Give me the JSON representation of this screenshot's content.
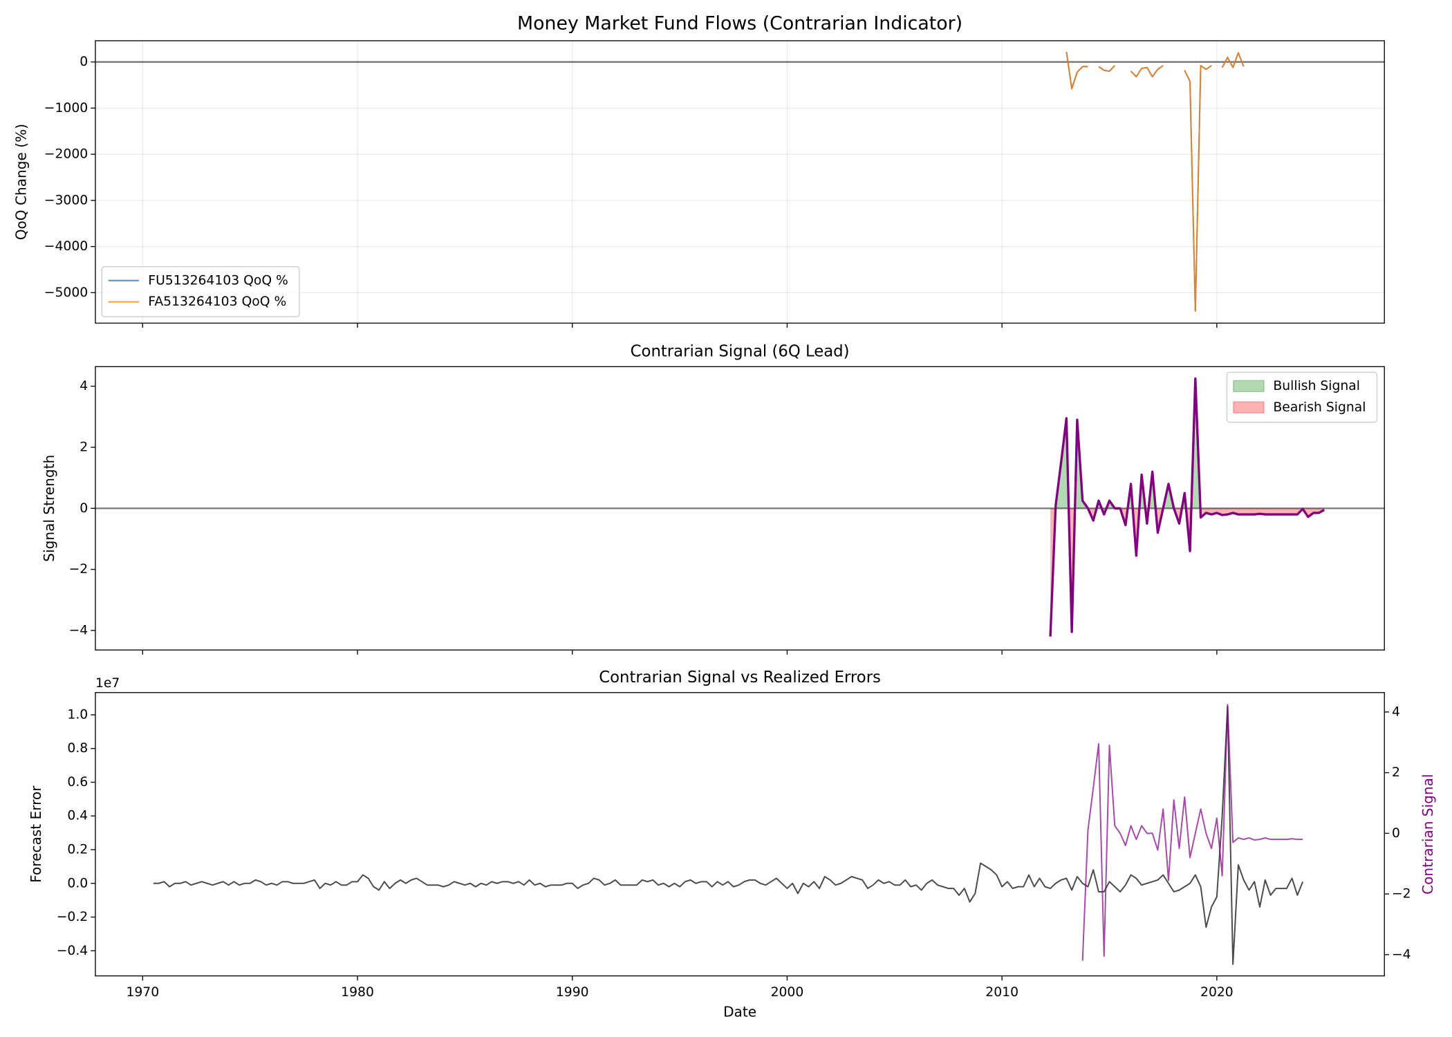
{
  "chart_data": [
    {
      "type": "line",
      "title": "Money Market Fund Flows (Contrarian Indicator)",
      "ylabel": "QoQ Change (%)",
      "xlim": [
        1967.8,
        2027.8
      ],
      "xticks": [
        1970,
        1980,
        1990,
        2000,
        2010,
        2020
      ],
      "xtick_labels": false,
      "ylim": [
        -5660,
        460
      ],
      "yticks": [
        {
          "value": -5000,
          "label": "−5000"
        },
        {
          "value": -4000,
          "label": "−4000"
        },
        {
          "value": -3000,
          "label": "−3000"
        },
        {
          "value": -2000,
          "label": "−2000"
        },
        {
          "value": -1000,
          "label": "−1000"
        },
        0
      ],
      "grid": true,
      "reference_line": 0,
      "legend": "lower left",
      "x": [
        2013.0,
        2013.25,
        2013.5,
        2013.75,
        2014.0,
        2014.25,
        2014.5,
        2014.75,
        2015.0,
        2015.25,
        2015.5,
        2015.75,
        2016.0,
        2016.25,
        2016.5,
        2016.75,
        2017.0,
        2017.25,
        2017.5,
        2017.75,
        2018.0,
        2018.25,
        2018.5,
        2018.75,
        2019.0,
        2019.25,
        2019.5,
        2019.75,
        2020.0,
        2020.25,
        2020.5,
        2020.75,
        2021.0,
        2021.25
      ],
      "series": [
        {
          "name": "FU513264103 QoQ %",
          "color": "#1f77b4",
          "alpha": 0.8,
          "linewidth": 1.5,
          "values": [
            220,
            -580,
            -220,
            -100,
            -100,
            null,
            -100,
            -180,
            -200,
            -80,
            null,
            null,
            -200,
            -320,
            -140,
            -120,
            -320,
            -160,
            -80,
            null,
            null,
            null,
            -180,
            -420,
            -5400,
            -80,
            -160,
            -80,
            null,
            -120,
            100,
            -120,
            200,
            -100
          ]
        },
        {
          "name": "FA513264103 QoQ %",
          "color": "#ff7f0e",
          "alpha": 0.8,
          "linewidth": 1.5,
          "values": [
            220,
            -580,
            -220,
            -100,
            -100,
            null,
            -100,
            -180,
            -200,
            -80,
            null,
            null,
            -200,
            -320,
            -140,
            -120,
            -320,
            -160,
            -80,
            null,
            null,
            null,
            -180,
            -420,
            -5400,
            -80,
            -160,
            -80,
            null,
            -120,
            100,
            -120,
            200,
            -100
          ]
        }
      ]
    },
    {
      "type": "line",
      "title": "Contrarian Signal (6Q Lead)",
      "ylabel": "Signal Strength",
      "xlim": [
        1967.8,
        2027.8
      ],
      "xticks": [
        1970,
        1980,
        1990,
        2000,
        2010,
        2020
      ],
      "xtick_labels": false,
      "ylim": [
        -4.64,
        4.64
      ],
      "yticks": [
        {
          "value": -4,
          "label": "−4"
        },
        {
          "value": -2,
          "label": "−2"
        },
        0,
        2,
        4
      ],
      "reference_line": 0,
      "legend": "upper right",
      "x": [
        2012.25,
        2012.5,
        2012.75,
        2013.0,
        2013.25,
        2013.5,
        2013.75,
        2014.0,
        2014.25,
        2014.5,
        2014.75,
        2015.0,
        2015.25,
        2015.5,
        2015.75,
        2016.0,
        2016.25,
        2016.5,
        2016.75,
        2017.0,
        2017.25,
        2017.5,
        2017.75,
        2018.0,
        2018.25,
        2018.5,
        2018.75,
        2019.0,
        2019.25,
        2019.5,
        2019.75,
        2020.0,
        2020.25,
        2020.5,
        2020.75,
        2021.0,
        2021.25,
        2021.5,
        2021.75,
        2022.0,
        2022.25,
        2022.5,
        2022.75,
        2023.0,
        2023.25,
        2023.5,
        2023.75,
        2024.0,
        2024.25,
        2024.5,
        2024.75,
        2025.0
      ],
      "series": [
        {
          "color": "#800080",
          "linewidth": 2.5,
          "values": [
            -4.2,
            0.1,
            1.5,
            2.95,
            -4.05,
            2.9,
            0.25,
            0,
            -0.4,
            0.25,
            -0.2,
            0.25,
            0,
            0,
            -0.55,
            0.8,
            -1.55,
            1.1,
            -0.5,
            1.2,
            -0.8,
            0,
            0.8,
            0,
            -0.5,
            0.5,
            -1.4,
            4.25,
            -0.3,
            -0.15,
            -0.2,
            -0.15,
            -0.22,
            -0.2,
            -0.15,
            -0.2,
            -0.2,
            -0.2,
            -0.2,
            -0.18,
            -0.2,
            -0.2,
            -0.2,
            -0.2,
            -0.2,
            -0.2,
            -0.2,
            -0.02,
            -0.28,
            -0.15,
            -0.15,
            -0.05
          ]
        }
      ],
      "fills": [
        {
          "name": "Bullish Signal",
          "color": "#008000",
          "alpha": 0.3,
          "where": "above"
        },
        {
          "name": "Bearish Signal",
          "color": "#ff0000",
          "alpha": 0.3,
          "where": "below"
        }
      ]
    },
    {
      "type": "line",
      "title": "Contrarian Signal vs Realized Errors",
      "xlabel": "Date",
      "ylabel": "Forecast Error",
      "y2label": "Contrarian Signal",
      "y_offset_label": "1e7",
      "xlim": [
        1967.8,
        2027.8
      ],
      "xticks": [
        1970,
        1980,
        1990,
        2000,
        2010,
        2020
      ],
      "xtick_labels": true,
      "ylim": [
        -5490000,
        11320000
      ],
      "yticks": [
        {
          "value": -4000000,
          "label": "−0.4"
        },
        {
          "value": -2000000,
          "label": "−0.2"
        },
        {
          "value": 0,
          "label": "0.0"
        },
        {
          "value": 2000000,
          "label": "0.2"
        },
        {
          "value": 4000000,
          "label": "0.4"
        },
        {
          "value": 6000000,
          "label": "0.6"
        },
        {
          "value": 8000000,
          "label": "0.8"
        },
        {
          "value": 10000000,
          "label": "1.0"
        }
      ],
      "y2lim": [
        -4.7,
        4.64
      ],
      "y2ticks": [
        {
          "value": -4,
          "label": "−4"
        },
        {
          "value": -2,
          "label": "−2"
        },
        0,
        2,
        4
      ],
      "series": [
        {
          "color": "#000000",
          "alpha": 0.7,
          "linewidth": 1.5,
          "x": [
            1970.5,
            1970.75,
            1971.0,
            1971.25,
            1971.5,
            1971.75,
            1972.0,
            1972.25,
            1972.5,
            1972.75,
            1973.0,
            1973.25,
            1973.5,
            1973.75,
            1974.0,
            1974.25,
            1974.5,
            1974.75,
            1975.0,
            1975.25,
            1975.5,
            1975.75,
            1976.0,
            1976.25,
            1976.5,
            1976.75,
            1977.0,
            1977.25,
            1977.5,
            1977.75,
            1978.0,
            1978.25,
            1978.5,
            1978.75,
            1979.0,
            1979.25,
            1979.5,
            1979.75,
            1980.0,
            1980.25,
            1980.5,
            1980.75,
            1981.0,
            1981.25,
            1981.5,
            1981.75,
            1982.0,
            1982.25,
            1982.5,
            1982.75,
            1983.0,
            1983.25,
            1983.5,
            1983.75,
            1984.0,
            1984.25,
            1984.5,
            1984.75,
            1985.0,
            1985.25,
            1985.5,
            1985.75,
            1986.0,
            1986.25,
            1986.5,
            1986.75,
            1987.0,
            1987.25,
            1987.5,
            1987.75,
            1988.0,
            1988.25,
            1988.5,
            1988.75,
            1989.0,
            1989.25,
            1989.5,
            1989.75,
            1990.0,
            1990.25,
            1990.5,
            1990.75,
            1991.0,
            1991.25,
            1991.5,
            1991.75,
            1992.0,
            1992.25,
            1992.5,
            1992.75,
            1993.0,
            1993.25,
            1993.5,
            1993.75,
            1994.0,
            1994.25,
            1994.5,
            1994.75,
            1995.0,
            1995.25,
            1995.5,
            1995.75,
            1996.0,
            1996.25,
            1996.5,
            1996.75,
            1997.0,
            1997.25,
            1997.5,
            1997.75,
            1998.0,
            1998.25,
            1998.5,
            1998.75,
            1999.0,
            1999.25,
            1999.5,
            1999.75,
            2000.0,
            2000.25,
            2000.5,
            2000.75,
            2001.0,
            2001.25,
            2001.5,
            2001.75,
            2002.0,
            2002.25,
            2002.5,
            2002.75,
            2003.0,
            2003.25,
            2003.5,
            2003.75,
            2004.0,
            2004.25,
            2004.5,
            2004.75,
            2005.0,
            2005.25,
            2005.5,
            2005.75,
            2006.0,
            2006.25,
            2006.5,
            2006.75,
            2007.0,
            2007.25,
            2007.5,
            2007.75,
            2008.0,
            2008.25,
            2008.5,
            2008.75,
            2009.0,
            2009.25,
            2009.5,
            2009.75,
            2010.0,
            2010.25,
            2010.5,
            2010.75,
            2011.0,
            2011.25,
            2011.5,
            2011.75,
            2012.0,
            2012.25,
            2012.5,
            2012.75,
            2013.0,
            2013.25,
            2013.5,
            2013.75,
            2014.0,
            2014.25,
            2014.5,
            2014.75,
            2015.0,
            2015.25,
            2015.5,
            2015.75,
            2016.0,
            2016.25,
            2016.5,
            2016.75,
            2017.0,
            2017.25,
            2017.5,
            2017.75,
            2018.0,
            2018.25,
            2018.5,
            2018.75,
            2019.0,
            2019.25,
            2019.5,
            2019.75,
            2020.0,
            2020.25,
            2020.5,
            2020.75,
            2021.0,
            2021.25,
            2021.5,
            2021.75,
            2022.0,
            2022.25,
            2022.5,
            2022.75,
            2023.0,
            2023.25,
            2023.5,
            2023.75,
            2024.0
          ],
          "values": [
            0,
            0,
            100000,
            -200000,
            0,
            0,
            100000,
            -100000,
            0,
            100000,
            0,
            -100000,
            0,
            100000,
            -100000,
            100000,
            -100000,
            0,
            0,
            200000,
            100000,
            -100000,
            0,
            -100000,
            100000,
            100000,
            0,
            0,
            0,
            100000,
            200000,
            -300000,
            0,
            -100000,
            100000,
            -100000,
            -100000,
            100000,
            100000,
            500000,
            300000,
            -200000,
            -400000,
            100000,
            -300000,
            0,
            200000,
            0,
            200000,
            300000,
            100000,
            -100000,
            -100000,
            -100000,
            -200000,
            -100000,
            100000,
            0,
            -100000,
            0,
            -200000,
            0,
            -100000,
            100000,
            0,
            100000,
            100000,
            0,
            100000,
            -100000,
            200000,
            -100000,
            0,
            -200000,
            -100000,
            -100000,
            -100000,
            0,
            0,
            -300000,
            -100000,
            0,
            300000,
            200000,
            -100000,
            0,
            200000,
            -100000,
            -100000,
            -100000,
            -100000,
            200000,
            100000,
            200000,
            -100000,
            0,
            -200000,
            0,
            -200000,
            100000,
            200000,
            0,
            100000,
            100000,
            -200000,
            100000,
            -100000,
            100000,
            -200000,
            -100000,
            100000,
            200000,
            200000,
            0,
            -100000,
            100000,
            300000,
            0,
            -300000,
            0,
            -600000,
            0,
            -200000,
            100000,
            -300000,
            400000,
            200000,
            -100000,
            0,
            200000,
            400000,
            300000,
            200000,
            -300000,
            -100000,
            200000,
            0,
            100000,
            -100000,
            -100000,
            200000,
            -200000,
            -100000,
            -400000,
            0,
            200000,
            -100000,
            -200000,
            -300000,
            -300000,
            -700000,
            -300000,
            -1100000,
            -600000,
            1200000,
            1000000,
            800000,
            500000,
            -200000,
            100000,
            -300000,
            -200000,
            -200000,
            500000,
            -200000,
            300000,
            -200000,
            -300000,
            0,
            200000,
            300000,
            -400000,
            400000,
            0,
            -200000,
            800000,
            -500000,
            -500000,
            100000,
            -200000,
            -500000,
            -100000,
            500000,
            300000,
            -100000,
            0,
            100000,
            200000,
            500000,
            0,
            -500000,
            -400000,
            -200000,
            0,
            500000,
            -200000,
            -2600000,
            -1400000,
            -800000,
            4000000,
            10500000,
            -4800000,
            1100000,
            200000,
            -400000,
            100000,
            -1400000,
            200000,
            -700000,
            -300000,
            -300000,
            -300000,
            300000,
            -700000,
            100000
          ]
        },
        {
          "color": "#800080",
          "alpha": 0.7,
          "linewidth": 1.5,
          "axis": "y2",
          "x": [
            2013.75,
            2014.0,
            2014.25,
            2014.5,
            2014.75,
            2015.0,
            2015.25,
            2015.5,
            2015.75,
            2016.0,
            2016.25,
            2016.5,
            2016.75,
            2017.0,
            2017.25,
            2017.5,
            2017.75,
            2018.0,
            2018.25,
            2018.5,
            2018.75,
            2019.0,
            2019.25,
            2019.5,
            2019.75,
            2020.0,
            2020.25,
            2020.5,
            2020.75,
            2021.0,
            2021.25,
            2021.5,
            2021.75,
            2022.0,
            2022.25,
            2022.5,
            2022.75,
            2023.0,
            2023.25,
            2023.5,
            2023.75,
            2024.0
          ],
          "values": [
            -4.2,
            0.1,
            1.5,
            2.95,
            -4.05,
            2.9,
            0.25,
            0,
            -0.4,
            0.25,
            -0.2,
            0.25,
            0,
            0,
            -0.55,
            0.8,
            -1.55,
            1.1,
            -0.5,
            1.2,
            -0.8,
            0,
            0.8,
            0,
            -0.5,
            0.5,
            -1.4,
            4.25,
            -0.3,
            -0.15,
            -0.2,
            -0.15,
            -0.22,
            -0.2,
            -0.15,
            -0.2,
            -0.2,
            -0.2,
            -0.2,
            -0.18,
            -0.2,
            -0.2
          ]
        }
      ]
    }
  ]
}
